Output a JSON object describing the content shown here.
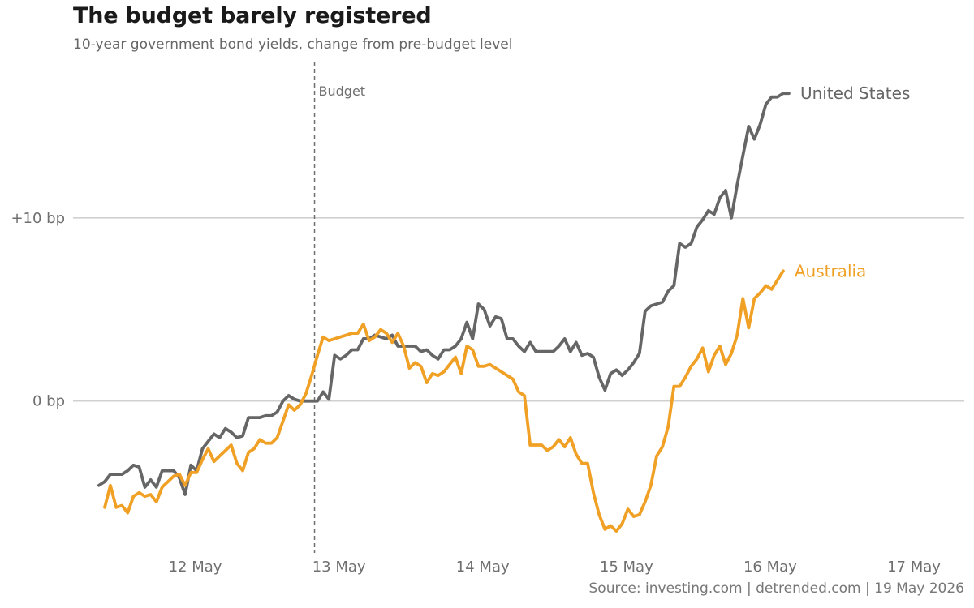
{
  "chart_data": {
    "type": "line",
    "title": "The budget barely registered",
    "subtitle": "10-year government bond yields, change from pre-budget level",
    "source": "Source: investing.com | detrended.com | 19 May 2026",
    "xlabel": "",
    "ylabel": "",
    "x_ticks": [
      {
        "label": "12 May",
        "day": 12
      },
      {
        "label": "13 May",
        "day": 13
      },
      {
        "label": "14 May",
        "day": 14
      },
      {
        "label": "15 May",
        "day": 15
      },
      {
        "label": "16 May",
        "day": 16
      },
      {
        "label": "17 May",
        "day": 17
      }
    ],
    "y_ticks": [
      {
        "label": "0 bp",
        "value": 0
      },
      {
        "label": "+10 bp",
        "value": 10
      }
    ],
    "xlim": [
      11.15,
      17.35
    ],
    "ylim": [
      -8.2,
      18.8
    ],
    "grid": "horizontal",
    "annotation": {
      "label": "Budget",
      "day": 12.83
    },
    "series": [
      {
        "name": "United States",
        "color": "#666666",
        "points": [
          [
            11.33,
            -4.6
          ],
          [
            11.37,
            -4.4
          ],
          [
            11.41,
            -4.0
          ],
          [
            11.45,
            -4.0
          ],
          [
            11.49,
            -4.0
          ],
          [
            11.53,
            -3.8
          ],
          [
            11.57,
            -3.5
          ],
          [
            11.61,
            -3.6
          ],
          [
            11.65,
            -4.7
          ],
          [
            11.69,
            -4.3
          ],
          [
            11.73,
            -4.7
          ],
          [
            11.77,
            -3.8
          ],
          [
            11.81,
            -3.8
          ],
          [
            11.85,
            -3.8
          ],
          [
            11.89,
            -4.2
          ],
          [
            11.93,
            -5.1
          ],
          [
            11.97,
            -3.5
          ],
          [
            12.01,
            -3.8
          ],
          [
            12.05,
            -2.6
          ],
          [
            12.09,
            -2.2
          ],
          [
            12.13,
            -1.8
          ],
          [
            12.17,
            -2.0
          ],
          [
            12.21,
            -1.5
          ],
          [
            12.25,
            -1.7
          ],
          [
            12.29,
            -2.0
          ],
          [
            12.33,
            -1.9
          ],
          [
            12.37,
            -0.9
          ],
          [
            12.41,
            -0.9
          ],
          [
            12.45,
            -0.9
          ],
          [
            12.49,
            -0.8
          ],
          [
            12.53,
            -0.8
          ],
          [
            12.57,
            -0.6
          ],
          [
            12.61,
            0.0
          ],
          [
            12.65,
            0.3
          ],
          [
            12.69,
            0.1
          ],
          [
            12.73,
            0.0
          ],
          [
            12.77,
            0.0
          ],
          [
            12.81,
            0.0
          ],
          [
            12.85,
            0.0
          ],
          [
            12.89,
            0.5
          ],
          [
            12.93,
            0.1
          ],
          [
            12.97,
            2.5
          ],
          [
            13.01,
            2.3
          ],
          [
            13.05,
            2.5
          ],
          [
            13.09,
            2.8
          ],
          [
            13.13,
            2.8
          ],
          [
            13.17,
            3.4
          ],
          [
            13.21,
            3.4
          ],
          [
            13.25,
            3.6
          ],
          [
            13.29,
            3.5
          ],
          [
            13.33,
            3.4
          ],
          [
            13.37,
            3.6
          ],
          [
            13.41,
            3.0
          ],
          [
            13.45,
            3.0
          ],
          [
            13.49,
            3.0
          ],
          [
            13.53,
            3.0
          ],
          [
            13.57,
            2.7
          ],
          [
            13.61,
            2.8
          ],
          [
            13.65,
            2.5
          ],
          [
            13.69,
            2.3
          ],
          [
            13.73,
            2.8
          ],
          [
            13.77,
            2.8
          ],
          [
            13.81,
            3.0
          ],
          [
            13.85,
            3.4
          ],
          [
            13.89,
            4.3
          ],
          [
            13.93,
            3.4
          ],
          [
            13.97,
            5.3
          ],
          [
            14.01,
            5.0
          ],
          [
            14.05,
            4.1
          ],
          [
            14.09,
            4.6
          ],
          [
            14.13,
            4.5
          ],
          [
            14.17,
            3.4
          ],
          [
            14.21,
            3.4
          ],
          [
            14.25,
            3.0
          ],
          [
            14.29,
            2.7
          ],
          [
            14.33,
            3.2
          ],
          [
            14.37,
            2.7
          ],
          [
            14.41,
            2.7
          ],
          [
            14.45,
            2.7
          ],
          [
            14.49,
            2.7
          ],
          [
            14.53,
            3.0
          ],
          [
            14.57,
            3.4
          ],
          [
            14.61,
            2.7
          ],
          [
            14.65,
            3.2
          ],
          [
            14.69,
            2.5
          ],
          [
            14.73,
            2.6
          ],
          [
            14.77,
            2.4
          ],
          [
            14.81,
            1.3
          ],
          [
            14.85,
            0.6
          ],
          [
            14.89,
            1.5
          ],
          [
            14.93,
            1.7
          ],
          [
            14.97,
            1.4
          ],
          [
            15.01,
            1.7
          ],
          [
            15.05,
            2.1
          ],
          [
            15.09,
            2.6
          ],
          [
            15.13,
            4.9
          ],
          [
            15.17,
            5.2
          ],
          [
            15.21,
            5.3
          ],
          [
            15.25,
            5.4
          ],
          [
            15.29,
            6.0
          ],
          [
            15.33,
            6.3
          ],
          [
            15.37,
            8.6
          ],
          [
            15.41,
            8.4
          ],
          [
            15.45,
            8.6
          ],
          [
            15.49,
            9.5
          ],
          [
            15.53,
            9.9
          ],
          [
            15.57,
            10.4
          ],
          [
            15.61,
            10.2
          ],
          [
            15.65,
            11.1
          ],
          [
            15.69,
            11.5
          ],
          [
            15.73,
            10.0
          ],
          [
            15.77,
            11.8
          ],
          [
            15.81,
            13.4
          ],
          [
            15.85,
            15.0
          ],
          [
            15.89,
            14.3
          ],
          [
            15.93,
            15.1
          ],
          [
            15.97,
            16.2
          ],
          [
            16.01,
            16.6
          ],
          [
            16.05,
            16.6
          ],
          [
            16.09,
            16.8
          ],
          [
            16.13,
            16.8
          ]
        ]
      },
      {
        "name": "Australia",
        "color": "#f0a024",
        "points": [
          [
            11.37,
            -5.8
          ],
          [
            11.41,
            -4.6
          ],
          [
            11.45,
            -5.8
          ],
          [
            11.49,
            -5.7
          ],
          [
            11.53,
            -6.1
          ],
          [
            11.57,
            -5.2
          ],
          [
            11.61,
            -5.0
          ],
          [
            11.65,
            -5.2
          ],
          [
            11.69,
            -5.1
          ],
          [
            11.73,
            -5.5
          ],
          [
            11.77,
            -4.7
          ],
          [
            11.81,
            -4.4
          ],
          [
            11.85,
            -4.1
          ],
          [
            11.89,
            -4.0
          ],
          [
            11.93,
            -4.6
          ],
          [
            11.97,
            -3.9
          ],
          [
            12.01,
            -3.9
          ],
          [
            12.05,
            -3.2
          ],
          [
            12.09,
            -2.6
          ],
          [
            12.13,
            -3.3
          ],
          [
            12.17,
            -3.0
          ],
          [
            12.21,
            -2.7
          ],
          [
            12.25,
            -2.4
          ],
          [
            12.29,
            -3.4
          ],
          [
            12.33,
            -3.8
          ],
          [
            12.37,
            -2.8
          ],
          [
            12.41,
            -2.6
          ],
          [
            12.45,
            -2.1
          ],
          [
            12.49,
            -2.3
          ],
          [
            12.53,
            -2.3
          ],
          [
            12.57,
            -2.0
          ],
          [
            12.61,
            -1.1
          ],
          [
            12.65,
            -0.2
          ],
          [
            12.69,
            -0.5
          ],
          [
            12.73,
            -0.2
          ],
          [
            12.77,
            0.4
          ],
          [
            12.81,
            1.4
          ],
          [
            12.85,
            2.5
          ],
          [
            12.89,
            3.5
          ],
          [
            12.93,
            3.3
          ],
          [
            12.97,
            3.4
          ],
          [
            13.01,
            3.5
          ],
          [
            13.05,
            3.6
          ],
          [
            13.09,
            3.7
          ],
          [
            13.13,
            3.7
          ],
          [
            13.17,
            4.2
          ],
          [
            13.21,
            3.3
          ],
          [
            13.25,
            3.5
          ],
          [
            13.29,
            3.9
          ],
          [
            13.33,
            3.7
          ],
          [
            13.37,
            3.2
          ],
          [
            13.41,
            3.7
          ],
          [
            13.45,
            3.0
          ],
          [
            13.49,
            1.8
          ],
          [
            13.53,
            2.1
          ],
          [
            13.57,
            1.9
          ],
          [
            13.61,
            1.0
          ],
          [
            13.65,
            1.5
          ],
          [
            13.69,
            1.4
          ],
          [
            13.73,
            1.6
          ],
          [
            13.77,
            2.0
          ],
          [
            13.81,
            2.4
          ],
          [
            13.85,
            1.5
          ],
          [
            13.89,
            3.0
          ],
          [
            13.93,
            2.8
          ],
          [
            13.97,
            1.9
          ],
          [
            14.01,
            1.9
          ],
          [
            14.05,
            2.0
          ],
          [
            14.09,
            1.8
          ],
          [
            14.13,
            1.6
          ],
          [
            14.17,
            1.4
          ],
          [
            14.21,
            1.2
          ],
          [
            14.25,
            0.5
          ],
          [
            14.29,
            0.3
          ],
          [
            14.33,
            -2.4
          ],
          [
            14.37,
            -2.4
          ],
          [
            14.41,
            -2.4
          ],
          [
            14.45,
            -2.7
          ],
          [
            14.49,
            -2.5
          ],
          [
            14.53,
            -2.1
          ],
          [
            14.57,
            -2.5
          ],
          [
            14.61,
            -2.0
          ],
          [
            14.65,
            -2.9
          ],
          [
            14.69,
            -3.4
          ],
          [
            14.73,
            -3.4
          ],
          [
            14.77,
            -5.0
          ],
          [
            14.81,
            -6.2
          ],
          [
            14.85,
            -7.0
          ],
          [
            14.89,
            -6.8
          ],
          [
            14.93,
            -7.1
          ],
          [
            14.97,
            -6.7
          ],
          [
            15.01,
            -5.9
          ],
          [
            15.05,
            -6.3
          ],
          [
            15.09,
            -6.2
          ],
          [
            15.13,
            -5.5
          ],
          [
            15.17,
            -4.6
          ],
          [
            15.21,
            -3.0
          ],
          [
            15.25,
            -2.5
          ],
          [
            15.29,
            -1.4
          ],
          [
            15.33,
            0.8
          ],
          [
            15.37,
            0.8
          ],
          [
            15.41,
            1.3
          ],
          [
            15.45,
            1.9
          ],
          [
            15.49,
            2.3
          ],
          [
            15.53,
            2.9
          ],
          [
            15.57,
            1.6
          ],
          [
            15.61,
            2.5
          ],
          [
            15.65,
            3.0
          ],
          [
            15.69,
            2.0
          ],
          [
            15.73,
            2.6
          ],
          [
            15.77,
            3.6
          ],
          [
            15.81,
            5.6
          ],
          [
            15.85,
            4.0
          ],
          [
            15.89,
            5.6
          ],
          [
            15.93,
            5.9
          ],
          [
            15.97,
            6.3
          ],
          [
            16.01,
            6.1
          ],
          [
            16.05,
            6.6
          ],
          [
            16.09,
            7.1
          ]
        ]
      }
    ]
  }
}
